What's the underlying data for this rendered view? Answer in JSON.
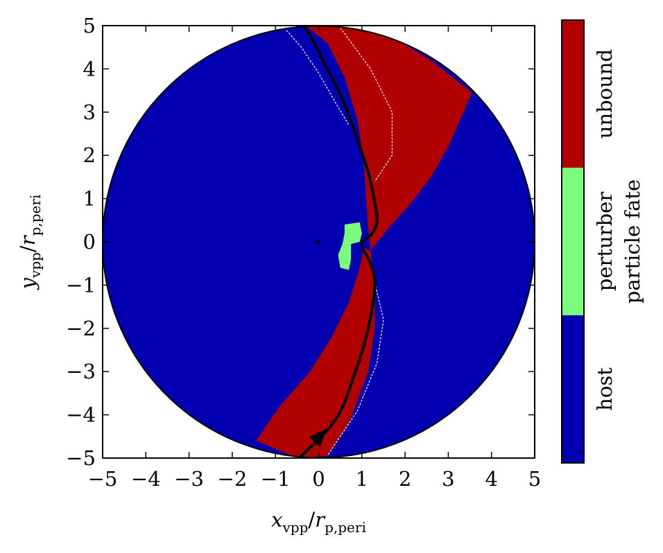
{
  "chart_data": {
    "type": "heatmap",
    "title": "",
    "xlabel": {
      "main": "x",
      "sub": "vpp",
      "den_main": "r",
      "den_sub": "p,peri"
    },
    "ylabel": {
      "main": "y",
      "sub": "vpp",
      "den_main": "r",
      "den_sub": "p,peri"
    },
    "xlim": [
      -5,
      5
    ],
    "ylim": [
      -5,
      5
    ],
    "xticks": [
      -5,
      -4,
      -3,
      -2,
      -1,
      0,
      1,
      2,
      3,
      4,
      5
    ],
    "yticks": [
      -5,
      -4,
      -3,
      -2,
      -1,
      0,
      1,
      2,
      3,
      4,
      5
    ],
    "xtick_labels": [
      "−5",
      "−4",
      "−3",
      "−2",
      "−1",
      "0",
      "1",
      "2",
      "3",
      "4",
      "5"
    ],
    "ytick_labels": [
      "−5",
      "−4",
      "−3",
      "−2",
      "−1",
      "0",
      "1",
      "2",
      "3",
      "4",
      "5"
    ],
    "grid": false,
    "disk_radius": 5,
    "host_center": [
      0,
      0
    ],
    "colorbar": {
      "label": "particle fate",
      "categories": [
        {
          "name": "host",
          "color": "#0000b0"
        },
        {
          "name": "perturber",
          "color": "#7cfc7c"
        },
        {
          "name": "unbound",
          "color": "#b00000"
        }
      ]
    },
    "regions": {
      "unbound_upper": [
        [
          -0.3,
          5
        ],
        [
          0.2,
          5
        ],
        [
          1.5,
          4.85
        ],
        [
          2.6,
          4.2
        ],
        [
          3.55,
          3.45
        ],
        [
          3.0,
          2.2
        ],
        [
          2.6,
          1.5
        ],
        [
          2.1,
          0.85
        ],
        [
          1.6,
          0.3
        ],
        [
          1.2,
          -0.2
        ],
        [
          1.15,
          0.3
        ],
        [
          1.1,
          1.0
        ],
        [
          1.05,
          1.8
        ],
        [
          0.9,
          2.8
        ],
        [
          0.6,
          3.8
        ],
        [
          0.2,
          4.6
        ]
      ],
      "unbound_lower": [
        [
          -1.45,
          -4.6
        ],
        [
          -0.9,
          -3.8
        ],
        [
          -0.2,
          -3.0
        ],
        [
          0.3,
          -2.2
        ],
        [
          0.7,
          -1.4
        ],
        [
          0.95,
          -0.6
        ],
        [
          1.05,
          -0.15
        ],
        [
          1.2,
          -0.2
        ],
        [
          1.3,
          -1.0
        ],
        [
          1.3,
          -2.0
        ],
        [
          1.15,
          -3.0
        ],
        [
          0.7,
          -4.2
        ],
        [
          0.2,
          -4.95
        ],
        [
          -0.5,
          -5.0
        ]
      ],
      "perturber": [
        [
          0.6,
          0.4
        ],
        [
          0.95,
          0.45
        ],
        [
          1.0,
          0.2
        ],
        [
          0.95,
          0.0
        ],
        [
          0.75,
          -0.05
        ],
        [
          0.75,
          -0.4
        ],
        [
          0.7,
          -0.65
        ],
        [
          0.5,
          -0.6
        ],
        [
          0.45,
          -0.3
        ],
        [
          0.55,
          -0.05
        ],
        [
          0.6,
          0.2
        ]
      ]
    },
    "perturber_orbit": {
      "x": [
        -0.35,
        -0.1,
        0.2,
        0.55,
        0.85,
        1.15,
        1.3,
        1.35,
        1.2,
        1.0,
        1.05,
        1.2,
        1.3,
        1.15,
        0.85,
        0.4,
        -0.45
      ],
      "y": [
        5.0,
        4.6,
        4.0,
        3.3,
        2.5,
        1.6,
        0.9,
        0.45,
        0.15,
        0.0,
        -0.2,
        -0.5,
        -1.0,
        -2.0,
        -3.0,
        -4.1,
        -5.0
      ]
    },
    "white_streaks": [
      {
        "x": [
          -0.8,
          -0.4,
          0.0,
          0.4,
          0.7
        ],
        "y": [
          4.95,
          4.5,
          3.9,
          3.2,
          2.7
        ]
      },
      {
        "x": [
          0.5,
          1.2,
          1.7,
          1.7,
          1.3
        ],
        "y": [
          4.95,
          4.0,
          3.0,
          2.0,
          1.4
        ]
      },
      {
        "x": [
          1.3,
          1.5,
          1.35,
          0.9,
          0.2
        ],
        "y": [
          -0.95,
          -1.8,
          -2.8,
          -3.9,
          -4.95
        ]
      }
    ]
  }
}
